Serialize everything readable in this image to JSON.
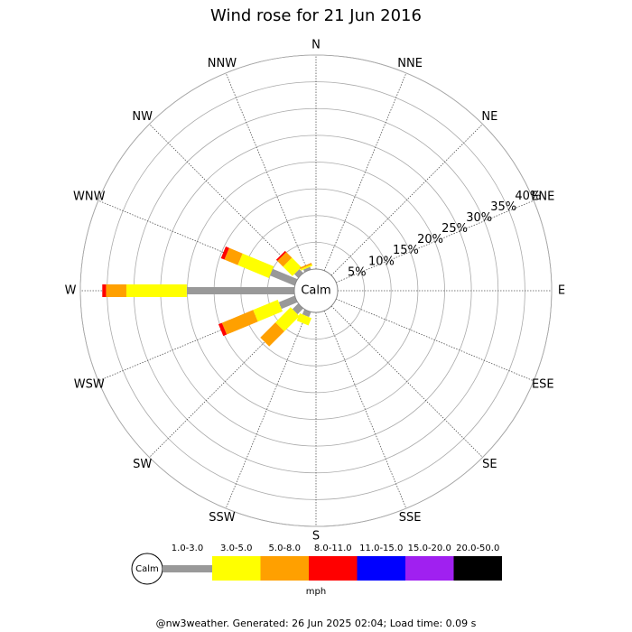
{
  "chart_data": {
    "type": "windrose",
    "title": "Wind rose for 21 Jun 2016",
    "categories": [
      "N",
      "NNE",
      "NE",
      "ENE",
      "E",
      "ESE",
      "SE",
      "SSE",
      "S",
      "SSW",
      "SW",
      "WSW",
      "W",
      "WNW",
      "NW",
      "NNW"
    ],
    "calm_label": "Calm",
    "rlim": [
      0,
      40
    ],
    "rticks": [
      {
        "value": 5,
        "label": "5%"
      },
      {
        "value": 10,
        "label": "10%"
      },
      {
        "value": 15,
        "label": "15%"
      },
      {
        "value": 20,
        "label": "20%"
      },
      {
        "value": 25,
        "label": "25%"
      },
      {
        "value": 30,
        "label": "30%"
      },
      {
        "value": 35,
        "label": "35%"
      },
      {
        "value": 40,
        "label": "40%"
      }
    ],
    "series": [
      {
        "name": "1.0-3.0",
        "color": "#999999",
        "values": [
          0,
          0,
          0,
          0,
          0,
          0,
          0,
          0,
          0,
          1,
          1.5,
          3.2,
          20.1,
          5,
          1,
          0.5
        ]
      },
      {
        "name": "3.0-5.0",
        "color": "#ffff00",
        "values": [
          0,
          0,
          0,
          0,
          0,
          0,
          0,
          0,
          0,
          1.5,
          4,
          5,
          11.3,
          6.3,
          2.5,
          0.3
        ]
      },
      {
        "name": "5.0-8.0",
        "color": "#ffa000",
        "values": [
          0,
          0,
          0,
          0,
          0,
          0,
          0,
          0,
          0,
          0,
          4,
          6.3,
          3.8,
          2.7,
          1.5,
          0.3
        ]
      },
      {
        "name": "8.0-11.0",
        "color": "#ff0000",
        "values": [
          0,
          0,
          0,
          0,
          0,
          0,
          0,
          0,
          0,
          0,
          0,
          0.7,
          0.7,
          0.7,
          0.3,
          0
        ]
      },
      {
        "name": "11.0-15.0",
        "color": "#0000ff",
        "values": [
          0,
          0,
          0,
          0,
          0,
          0,
          0,
          0,
          0,
          0,
          0,
          0,
          0,
          0,
          0,
          0
        ]
      },
      {
        "name": "15.0-20.0",
        "color": "#a020f0",
        "values": [
          0,
          0,
          0,
          0,
          0,
          0,
          0,
          0,
          0,
          0,
          0,
          0,
          0,
          0,
          0,
          0
        ]
      },
      {
        "name": "20.0-50.0",
        "color": "#000000",
        "values": [
          0,
          0,
          0,
          0,
          0,
          0,
          0,
          0,
          0,
          0,
          0,
          0,
          0,
          0,
          0,
          0
        ]
      }
    ],
    "unit_label": "mph",
    "footer": "@nw3weather. Generated: 26 Jun 2025 02:04; Load time: 0.09 s"
  }
}
